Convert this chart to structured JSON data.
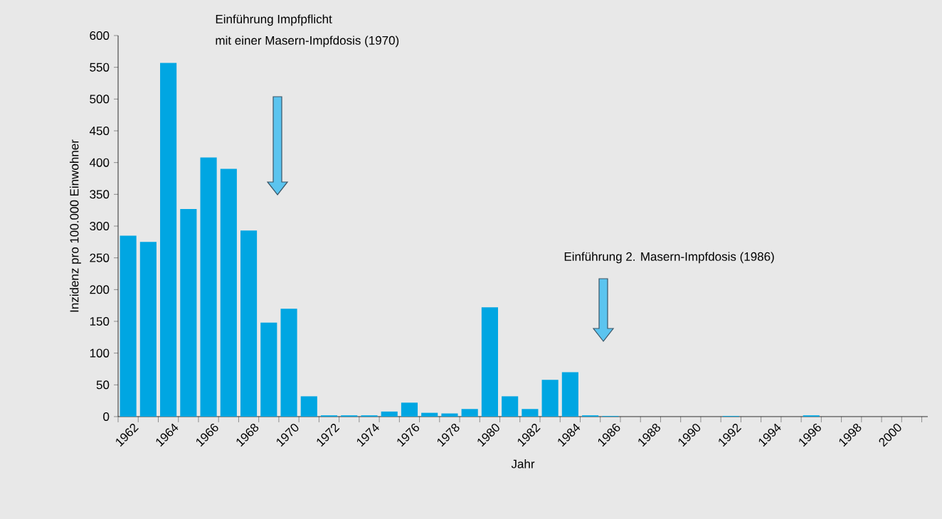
{
  "chart_data": {
    "type": "bar",
    "xlabel": "Jahr",
    "ylabel": "Inzidenz pro 100.000 Einwohner",
    "categories": [
      "1962",
      null,
      "1964",
      null,
      "1966",
      null,
      "1968",
      null,
      "1970",
      null,
      "1972",
      null,
      "1974",
      null,
      "1976",
      null,
      "1978",
      null,
      "1980",
      null,
      "1982",
      null,
      "1984",
      null,
      "1986",
      null,
      "1988",
      null,
      "1990",
      null,
      "1992",
      null,
      "1994",
      null,
      "1996",
      null,
      "1998",
      null,
      "2000",
      null
    ],
    "values": [
      285,
      275,
      557,
      327,
      408,
      390,
      293,
      148,
      170,
      32,
      2,
      2,
      2,
      8,
      22,
      6,
      5,
      12,
      172,
      32,
      12,
      58,
      70,
      2,
      1,
      0,
      0,
      0,
      0,
      0,
      1,
      0,
      0,
      0,
      2,
      0,
      0,
      0,
      0,
      0
    ],
    "color": "#00a6e2",
    "ylim": [
      0,
      600
    ],
    "yticks": [
      0,
      50,
      100,
      150,
      200,
      250,
      300,
      350,
      400,
      450,
      500,
      550,
      600
    ],
    "grid": false,
    "annotations": [
      "Einführung Impfpflicht",
      "mit einer Masern-Impfdosis (1970)",
      "Einführung 2. Masern-Impfdosis (1986)"
    ]
  }
}
